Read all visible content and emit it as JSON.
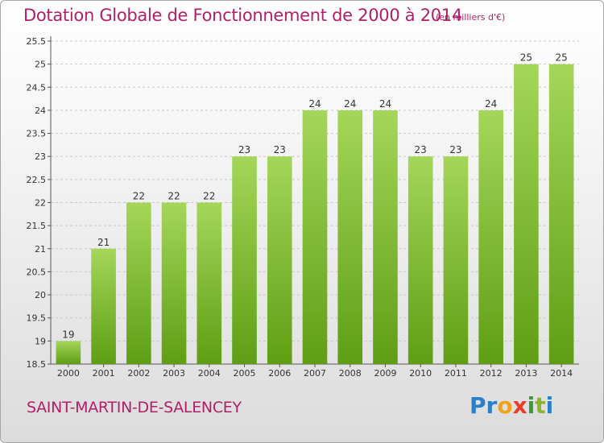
{
  "title": "Dotation Globale de Fonctionnement de 2000 à 2014",
  "subtitle": "(en milliers d'€)",
  "commune": "SAINT-MARTIN-DE-SALENCEY",
  "logo": {
    "letters": [
      "P",
      "r",
      "o",
      "x",
      "i",
      "t",
      "i"
    ]
  },
  "colors": {
    "title": "#b02068",
    "bar_light": "#a4d65a",
    "bar_dark": "#5f9e14",
    "grid": "#c8c8c8"
  },
  "chart_data": {
    "type": "bar",
    "title": "Dotation Globale de Fonctionnement de 2000 à 2014",
    "xlabel": "",
    "ylabel": "",
    "categories": [
      "2000",
      "2001",
      "2002",
      "2003",
      "2004",
      "2005",
      "2006",
      "2007",
      "2008",
      "2009",
      "2010",
      "2011",
      "2012",
      "2013",
      "2014"
    ],
    "values": [
      19,
      21,
      22,
      22,
      22,
      23,
      23,
      24,
      24,
      24,
      23,
      23,
      24,
      25,
      25
    ],
    "labels": [
      "19",
      "21",
      "22",
      "22",
      "22",
      "23",
      "23",
      "24",
      "24",
      "24",
      "23",
      "23",
      "24",
      "25",
      "25"
    ],
    "ylim": [
      18.5,
      25.5
    ],
    "yticks": [
      18.5,
      19,
      19.5,
      20,
      20.5,
      21,
      21.5,
      22,
      22.5,
      23,
      23.5,
      24,
      24.5,
      25,
      25.5
    ],
    "ytick_labels": [
      "18.5",
      "19",
      "19.5",
      "20",
      "20.5",
      "21",
      "21.5",
      "22",
      "22.5",
      "23",
      "23.5",
      "24",
      "24.5",
      "25",
      "25.5"
    ],
    "grid": true
  }
}
